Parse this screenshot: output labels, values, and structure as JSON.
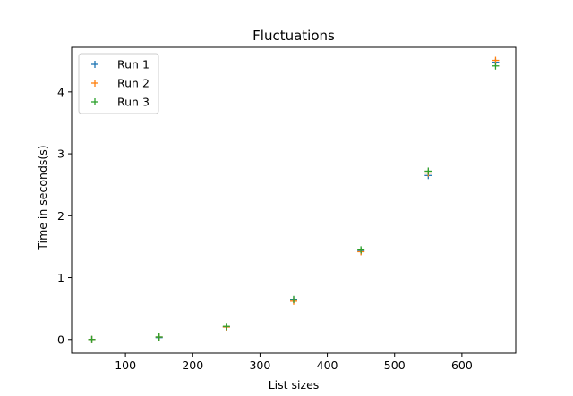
{
  "chart_data": {
    "type": "scatter",
    "title": "Fluctuations",
    "xlabel": "List sizes",
    "ylabel": "Time in seconds(s)",
    "xlim": [
      20,
      680
    ],
    "ylim": [
      -0.22,
      4.72
    ],
    "xticks": [
      100,
      200,
      300,
      400,
      500,
      600
    ],
    "yticks": [
      0,
      1,
      2,
      3,
      4
    ],
    "grid": false,
    "legend_position": "top-left",
    "marker": "+",
    "x": [
      50,
      150,
      250,
      350,
      450,
      550,
      650
    ],
    "series": [
      {
        "name": "Run 1",
        "color": "#1f77b4",
        "values": [
          0.0,
          0.03,
          0.2,
          0.64,
          1.43,
          2.65,
          4.48
        ]
      },
      {
        "name": "Run 2",
        "color": "#ff7f0e",
        "values": [
          0.0,
          0.04,
          0.2,
          0.62,
          1.42,
          2.69,
          4.51
        ]
      },
      {
        "name": "Run 3",
        "color": "#2ca02c",
        "values": [
          0.0,
          0.04,
          0.21,
          0.65,
          1.45,
          2.72,
          4.42
        ]
      }
    ]
  }
}
